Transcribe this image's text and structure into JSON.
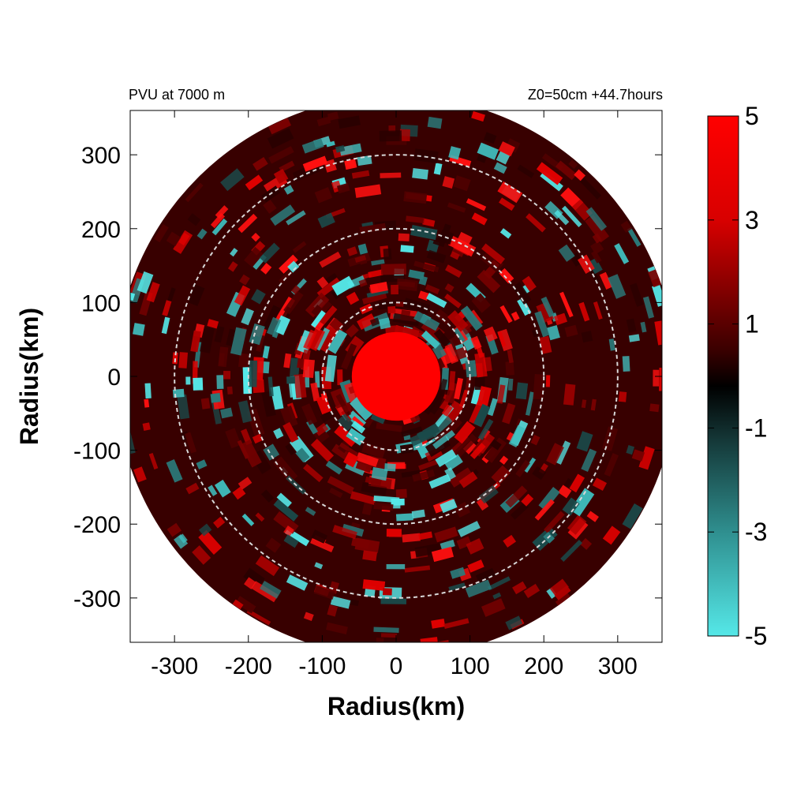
{
  "chart_data": {
    "type": "heatmap",
    "title_left": "PVU at  7000 m",
    "title_right": "Z0=50cm  +44.7hours",
    "xlabel": "Radius(km)",
    "ylabel": "Radius(km)",
    "xlim": [
      -360,
      360
    ],
    "ylim": [
      -360,
      360
    ],
    "xticks": [
      -300,
      -200,
      -100,
      0,
      100,
      200,
      300
    ],
    "yticks": [
      300,
      200,
      100,
      0,
      -100,
      -200,
      -300
    ],
    "domain_radius": 380,
    "reference_circles": [
      100,
      200,
      300
    ],
    "core": {
      "radius": 60,
      "value": 5
    },
    "colorbar": {
      "min": -5,
      "max": 5,
      "ticks": [
        5,
        3,
        1,
        -1,
        -3,
        -5
      ],
      "colors": {
        "high": "#ff0000",
        "mid": "#000000",
        "low": "#55e8e8"
      }
    }
  }
}
